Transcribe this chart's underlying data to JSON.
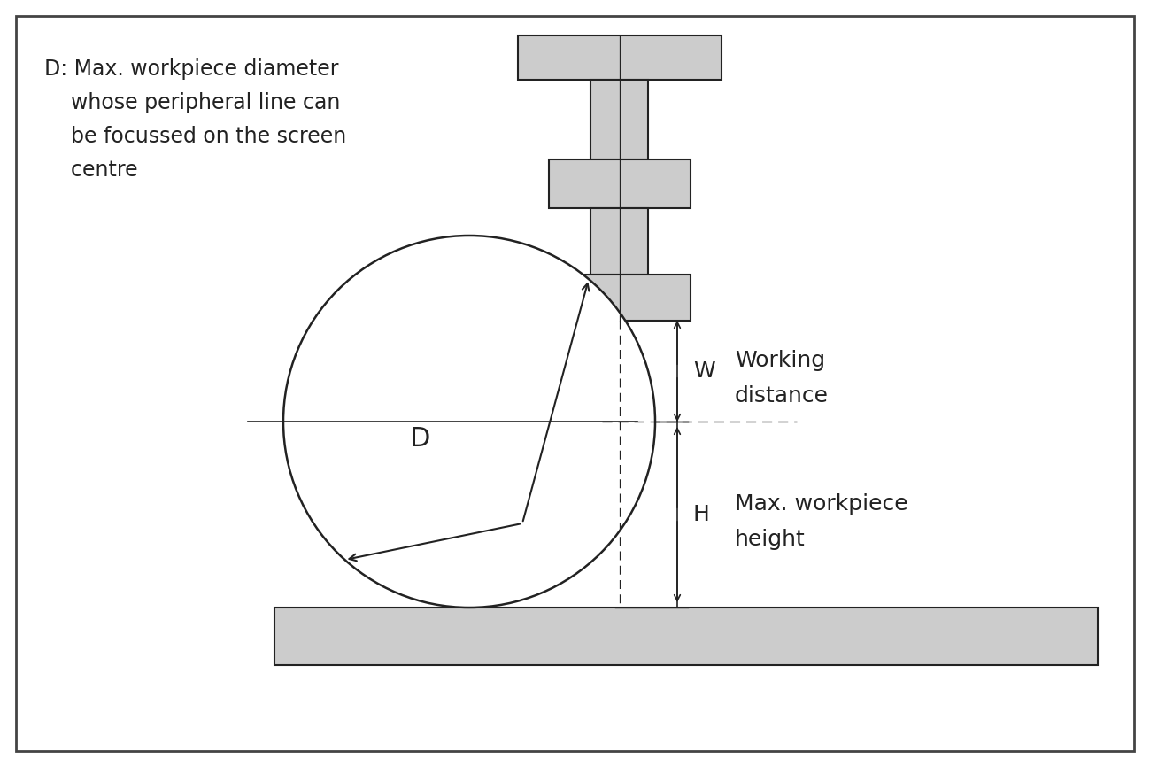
{
  "bg_color": "#ffffff",
  "border_color": "#444444",
  "fill_gray": "#cccccc",
  "line_color": "#222222",
  "text_color": "#222222",
  "annotation_line1": "D: Max. workpiece diameter",
  "annotation_line2": "    whose peripheral line can",
  "annotation_line3": "    be focussed on the screen",
  "annotation_line4": "    centre",
  "label_W": "W",
  "label_H": "H",
  "label_D": "D",
  "label_working_line1": "Working",
  "label_working_line2": "distance",
  "label_maxheight_line1": "Max. workpiece",
  "label_maxheight_line2": "height",
  "fig_width": 12.99,
  "fig_height": 8.66,
  "dpi": 100
}
